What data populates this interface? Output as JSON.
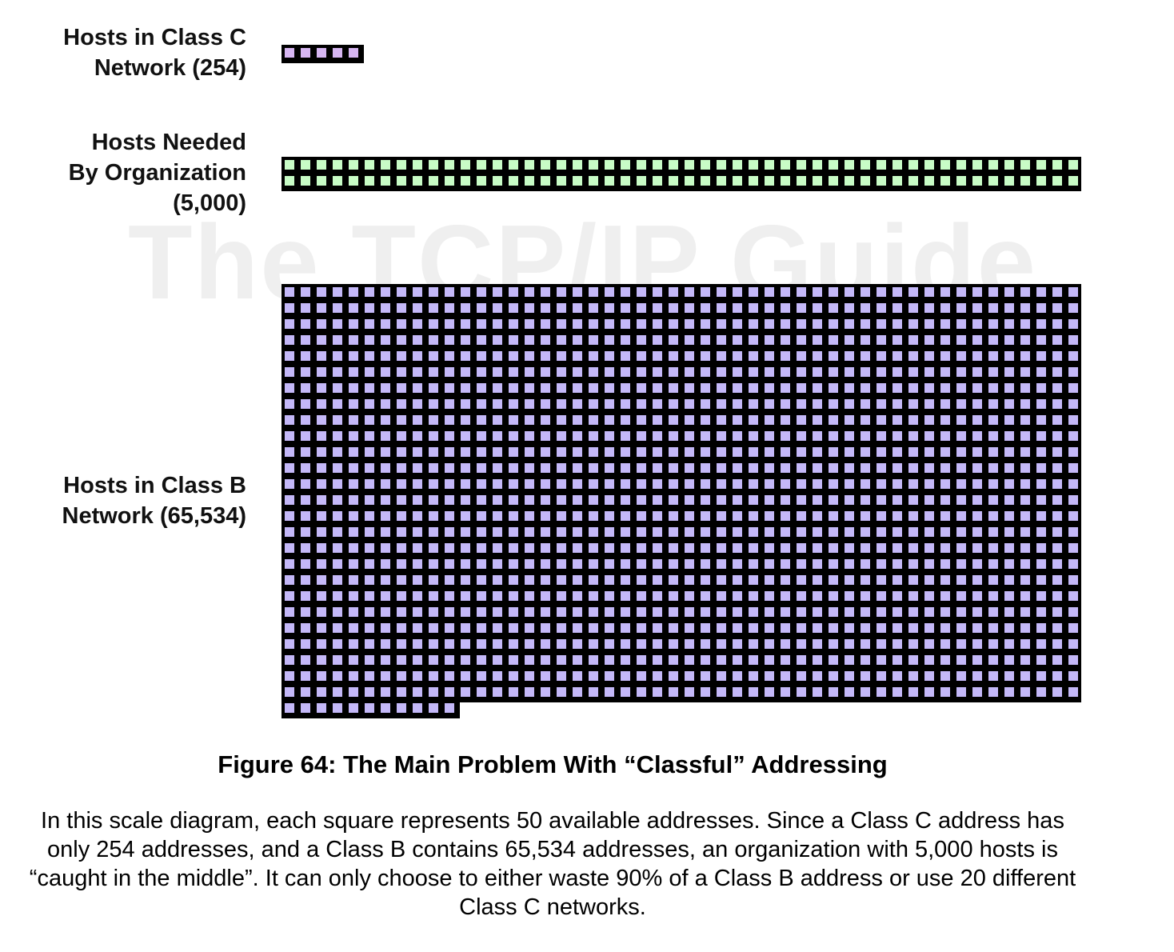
{
  "labels": {
    "class_c": [
      "Hosts in Class C",
      "Network (254)"
    ],
    "needed": [
      "Hosts Needed",
      "By Organization",
      "(5,000)"
    ],
    "class_b": [
      "Hosts in Class B",
      "Network (65,534)"
    ]
  },
  "watermark": "The TCP/IP Guide",
  "caption": {
    "title": "Figure 64: The Main Problem With “Classful” Addressing",
    "body": "In this scale diagram, each square represents 50 available addresses. Since a Class C address has only 254 addresses, and a Class B contains 65,534 addresses, an organization with 5,000 hosts is “caught in the middle”. It can only choose to either waste 90% of a Class B address or use 20 different Class C networks."
  },
  "blocks": [
    {
      "id": "class_c",
      "squares": 5,
      "fill": "#d7b6f2"
    },
    {
      "id": "needed",
      "squares": 100,
      "fill": "#c8fcc6"
    },
    {
      "id": "class_b",
      "squares": 1311,
      "fill": "#c4b8f8"
    }
  ],
  "square_value": 50
}
